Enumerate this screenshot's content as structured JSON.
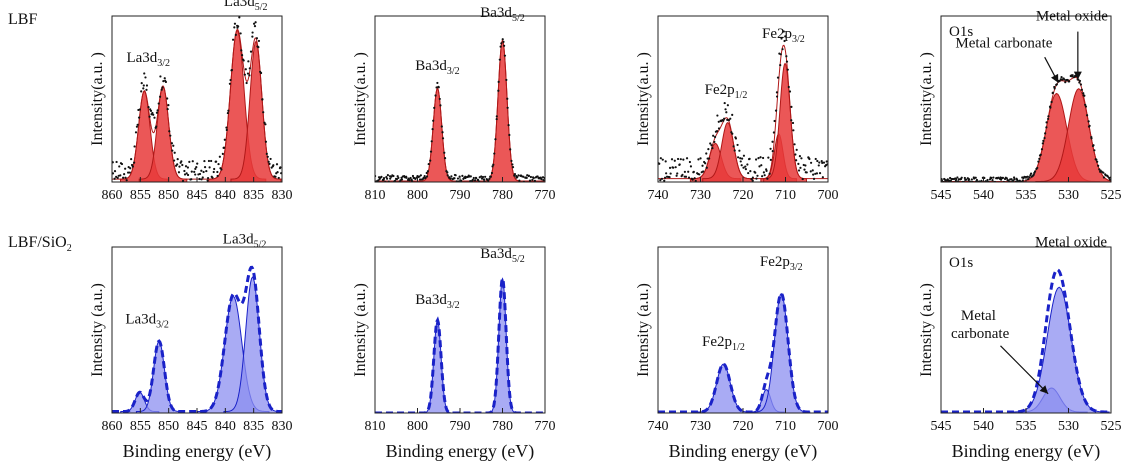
{
  "row_labels": [
    "LBF",
    "LBF/SiO2"
  ],
  "style": {
    "red_fill": "#e83a3a",
    "red_edge": "#b01818",
    "blue_fill": "#8c8ff0",
    "blue_line": "#1a22c8",
    "dots": "#111111"
  },
  "chart_data": [
    {
      "id": "lbf_la",
      "type": "line",
      "row": 0,
      "col": 0,
      "theme": "red",
      "xlim": [
        860,
        830
      ],
      "xticks": [
        860,
        855,
        850,
        845,
        840,
        835,
        830
      ],
      "ylabel": "Intensity(a.u. )",
      "xlabel": "",
      "title": "",
      "background": 0.06,
      "noise": 0.06,
      "peaks": [
        {
          "center": 854.3,
          "height": 0.55,
          "width": 1.0
        },
        {
          "center": 851.0,
          "height": 0.58,
          "width": 1.0
        },
        {
          "center": 837.9,
          "height": 0.93,
          "width": 1.2
        },
        {
          "center": 834.6,
          "height": 0.86,
          "width": 1.05
        }
      ],
      "annotations": [
        {
          "main": "La3d",
          "sub": "3/2",
          "x": 853.6,
          "level": 0.75
        },
        {
          "main": "La3d",
          "sub": "5/2",
          "x": 836.4,
          "level": 1.1
        }
      ]
    },
    {
      "id": "lbf_ba",
      "type": "line",
      "row": 0,
      "col": 1,
      "theme": "red",
      "xlim": [
        810,
        770
      ],
      "xticks": [
        810,
        800,
        790,
        780,
        770
      ],
      "ylabel": "Intensity(a.u. )",
      "xlabel": "",
      "title": "",
      "background": 0.02,
      "noise": 0.02,
      "peaks": [
        {
          "center": 795.3,
          "height": 0.58,
          "width": 1.0
        },
        {
          "center": 780.0,
          "height": 0.88,
          "width": 1.05
        }
      ],
      "annotations": [
        {
          "main": "Ba3d",
          "sub": "3/2",
          "x": 795.3,
          "level": 0.7
        },
        {
          "main": "Ba3d",
          "sub": "5/2",
          "x": 780.0,
          "level": 1.03
        }
      ]
    },
    {
      "id": "lbf_fe",
      "type": "line",
      "row": 0,
      "col": 2,
      "theme": "red",
      "xlim": [
        740,
        700
      ],
      "xticks": [
        740,
        730,
        720,
        710,
        700
      ],
      "ylabel": "Intensity(a.u. )",
      "xlabel": "",
      "title": "",
      "background": 0.07,
      "noise": 0.07,
      "peaks": [
        {
          "center": 726.5,
          "height": 0.22,
          "width": 1.4
        },
        {
          "center": 723.6,
          "height": 0.35,
          "width": 1.4
        },
        {
          "center": 711.6,
          "height": 0.28,
          "width": 1.0
        },
        {
          "center": 710.1,
          "height": 0.72,
          "width": 1.2
        }
      ],
      "annotations": [
        {
          "main": "Fe2p",
          "sub": "1/2",
          "x": 724.0,
          "level": 0.55
        },
        {
          "main": "Fe2p",
          "sub": "3/2",
          "x": 710.5,
          "level": 0.9
        }
      ]
    },
    {
      "id": "lbf_o",
      "type": "line",
      "row": 0,
      "col": 3,
      "theme": "red",
      "xlim": [
        545,
        525
      ],
      "xticks": [
        545,
        540,
        535,
        530,
        525
      ],
      "ylabel": "Intensity(a.u. )",
      "xlabel": "",
      "title": "O1s",
      "background": 0.01,
      "noise": 0.015,
      "peaks": [
        {
          "center": 531.4,
          "height": 0.55,
          "width": 1.2
        },
        {
          "center": 528.8,
          "height": 0.58,
          "width": 1.2
        }
      ],
      "annotations": [
        {
          "main": "Metal carbonate",
          "sub": "",
          "x": 537.6,
          "level": 0.84
        },
        {
          "main": "Metal oxide",
          "sub": "",
          "x": 529.6,
          "level": 1.01
        }
      ],
      "arrows": [
        {
          "from": [
            532.8,
            0.78
          ],
          "to": [
            531.2,
            0.62
          ]
        },
        {
          "from": [
            528.9,
            0.94
          ],
          "to": [
            528.9,
            0.64
          ]
        }
      ]
    },
    {
      "id": "sio2_la",
      "type": "line",
      "row": 1,
      "col": 0,
      "theme": "blue",
      "xlim": [
        860,
        830
      ],
      "xticks": [
        860,
        855,
        850,
        845,
        840,
        835,
        830
      ],
      "ylabel": "Intensity (a.u.)",
      "xlabel": "Binding energy (eV)",
      "title": "",
      "background": 0.03,
      "noise": 0.0,
      "peaks": [
        {
          "center": 855.1,
          "height": 0.12,
          "width": 0.8
        },
        {
          "center": 851.7,
          "height": 0.44,
          "width": 0.95
        },
        {
          "center": 838.6,
          "height": 0.72,
          "width": 1.5
        },
        {
          "center": 835.2,
          "height": 0.84,
          "width": 1.2
        }
      ],
      "annotations": [
        {
          "main": "La3d",
          "sub": "3/2",
          "x": 853.8,
          "level": 0.56
        },
        {
          "main": "La3d",
          "sub": "5/2",
          "x": 836.6,
          "level": 1.06
        }
      ]
    },
    {
      "id": "sio2_ba",
      "type": "line",
      "row": 1,
      "col": 1,
      "theme": "blue",
      "xlim": [
        810,
        770
      ],
      "xticks": [
        810,
        800,
        790,
        780,
        770
      ],
      "ylabel": "Intensity (a.u.)",
      "xlabel": "Binding energy (eV)",
      "title": "",
      "background": 0.0,
      "noise": 0.0,
      "peaks": [
        {
          "center": 795.3,
          "height": 0.58,
          "width": 0.85
        },
        {
          "center": 780.0,
          "height": 0.84,
          "width": 0.85
        }
      ],
      "annotations": [
        {
          "main": "Ba3d",
          "sub": "3/2",
          "x": 795.3,
          "level": 0.68
        },
        {
          "main": "Ba3d",
          "sub": "5/2",
          "x": 780.0,
          "level": 0.97
        }
      ]
    },
    {
      "id": "sio2_fe",
      "type": "line",
      "row": 1,
      "col": 2,
      "theme": "blue",
      "xlim": [
        740,
        700
      ],
      "xticks": [
        740,
        730,
        720,
        710,
        700
      ],
      "ylabel": "Intensity (a.u.)",
      "xlabel": "Binding energy (eV)",
      "title": "",
      "background": 0.02,
      "noise": 0.0,
      "peaks": [
        {
          "center": 724.6,
          "height": 0.3,
          "width": 1.6
        },
        {
          "center": 714.5,
          "height": 0.14,
          "width": 1.0
        },
        {
          "center": 711.0,
          "height": 0.74,
          "width": 1.6
        }
      ],
      "annotations": [
        {
          "main": "Fe2p",
          "sub": "1/2",
          "x": 724.6,
          "level": 0.42
        },
        {
          "main": "Fe2p",
          "sub": "3/2",
          "x": 711.0,
          "level": 0.92
        }
      ]
    },
    {
      "id": "sio2_o",
      "type": "line",
      "row": 1,
      "col": 3,
      "theme": "blue",
      "xlim": [
        545,
        525
      ],
      "xticks": [
        545,
        540,
        535,
        530,
        525
      ],
      "ylabel": "Intensity (a.u.)",
      "xlabel": "Binding energy (eV)",
      "title": "O1s",
      "background": 0.02,
      "noise": 0.0,
      "peaks": [
        {
          "center": 532.0,
          "height": 0.15,
          "width": 1.0
        },
        {
          "center": 531.1,
          "height": 0.78,
          "width": 1.4
        }
      ],
      "annotations": [
        {
          "main": "Metal oxide",
          "sub": "",
          "x": 529.7,
          "level": 1.04
        },
        {
          "main": "Metal",
          "sub": "",
          "x": 540.6,
          "level": 0.58
        },
        {
          "main": "carbonate",
          "sub": "",
          "x": 540.4,
          "level": 0.47
        }
      ],
      "arrows": [
        {
          "from": [
            538.0,
            0.42
          ],
          "to": [
            532.4,
            0.12
          ]
        }
      ]
    }
  ]
}
